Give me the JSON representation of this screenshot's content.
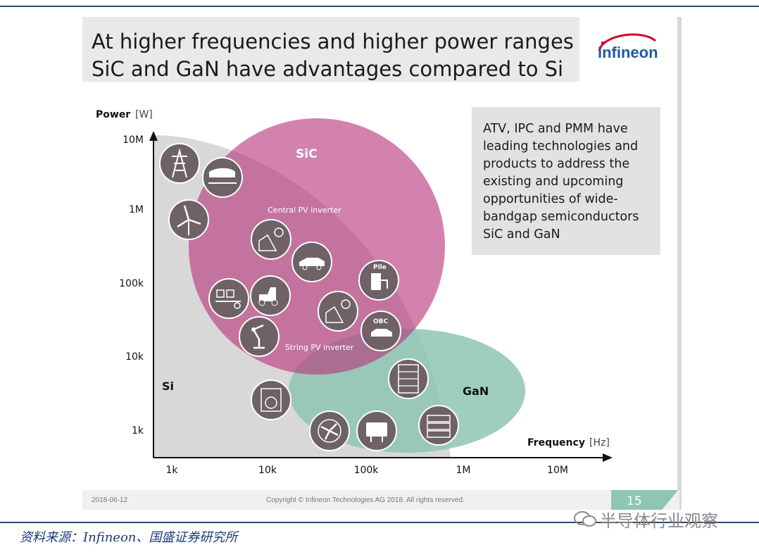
{
  "slide": {
    "title_line1": "At higher frequencies and higher power ranges",
    "title_line2": "SiC and GaN have advantages compared to Si",
    "logo_text": "infineon",
    "info_text": "ATV, IPC and PMM have\nleading technologies and\nproducts to address the\nexisting and upcoming\nopportunities of wide-\nbandgap semiconductors\nSiC and GaN",
    "footer_date": "2018-06-12",
    "footer_copyright": "Copyright © Infineon Technologies AG 2018. All rights reserved.",
    "page_number": "15"
  },
  "diagram": {
    "y_axis_label": "Power",
    "y_axis_unit": "[W]",
    "x_axis_label": "Frequency",
    "x_axis_unit": "[Hz]",
    "y_ticks": [
      "10M",
      "1M",
      "100k",
      "10k",
      "1k"
    ],
    "x_ticks": [
      "1k",
      "10k",
      "100k",
      "1M",
      "10M"
    ],
    "regions": [
      {
        "name": "Si",
        "color": "#d6d6d6"
      },
      {
        "name": "SiC",
        "color": "#c0498a"
      },
      {
        "name": "GaN",
        "color": "#8fc6b3"
      }
    ],
    "annotations": {
      "central_pv": "Central PV inverter",
      "string_pv": "String PV inverter",
      "pile": "Pile",
      "obc": "OBC"
    },
    "icons": [
      "power-tower-icon",
      "train-icon",
      "wind-turbine-icon",
      "solar-panel-icon",
      "electric-car-icon",
      "charging-pile-icon",
      "conveyor-icon",
      "wheel-loader-icon",
      "solar-panel-icon",
      "robot-arm-icon",
      "onboard-charger-icon",
      "washing-machine-icon",
      "server-rack-icon",
      "fan-icon",
      "power-adapter-icon",
      "server-unit-icon"
    ]
  },
  "page": {
    "source_note": "资料来源：Infineon、国盛证券研究所",
    "watermark": "半导体行业观察"
  },
  "colors": {
    "accent_blue": "#1c3a78",
    "page_badge": "#8fc6b3",
    "logo_red": "#d4002a",
    "logo_blue": "#1b5aa6"
  }
}
